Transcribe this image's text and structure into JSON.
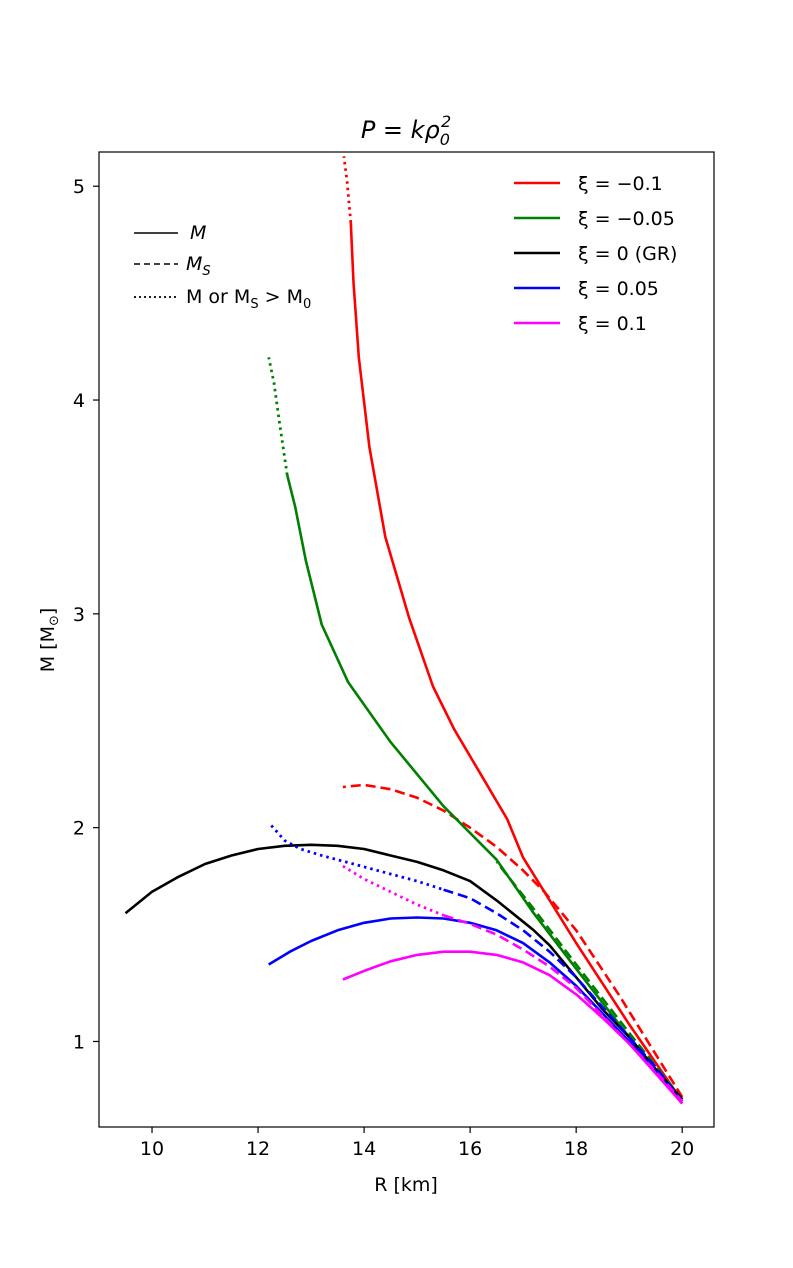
{
  "chart_data": {
    "type": "line",
    "title": {
      "main": "P = kρ",
      "sub": "0",
      "sup": "2"
    },
    "xlabel": "R [km]",
    "ylabel": "M [M",
    "ylabel_symbol": "⊙",
    "ylabel_close": "]",
    "xlim": [
      9.0,
      20.6
    ],
    "ylim": [
      0.6,
      5.16
    ],
    "xticks": [
      10,
      12,
      14,
      16,
      18,
      20
    ],
    "yticks": [
      1,
      2,
      3,
      4,
      5
    ],
    "grid": false,
    "legend_position": "top-right",
    "style_legend": {
      "position": "top-left",
      "entries": [
        {
          "style": "solid",
          "label": "M"
        },
        {
          "style": "dashed",
          "label": "M",
          "sub": "S"
        },
        {
          "style": "dotted",
          "label": "M or M",
          "sub": "S",
          "tail": " > M",
          "tail_sub": "0"
        }
      ]
    },
    "series": [
      {
        "name": "ξ = −0.1",
        "color": "#ff0000",
        "M_solid": [
          [
            20.0,
            0.72
          ],
          [
            19.0,
            1.08
          ],
          [
            18.0,
            1.46
          ],
          [
            17.0,
            1.86
          ],
          [
            16.7,
            2.04
          ],
          [
            16.2,
            2.25
          ],
          [
            15.7,
            2.46
          ],
          [
            15.3,
            2.66
          ],
          [
            14.85,
            2.98
          ],
          [
            14.4,
            3.36
          ],
          [
            14.1,
            3.78
          ],
          [
            13.9,
            4.2
          ],
          [
            13.8,
            4.55
          ],
          [
            13.75,
            4.83
          ]
        ],
        "M_dotted": [
          [
            13.75,
            4.83
          ],
          [
            13.68,
            5.02
          ],
          [
            13.62,
            5.14
          ]
        ],
        "MS_dashed": [
          [
            20.0,
            0.74
          ],
          [
            19.4,
            0.98
          ],
          [
            18.8,
            1.22
          ],
          [
            18.0,
            1.52
          ],
          [
            17.4,
            1.7
          ],
          [
            17.0,
            1.8
          ],
          [
            16.5,
            1.91
          ],
          [
            16.0,
            2.0
          ],
          [
            15.5,
            2.08
          ],
          [
            15.0,
            2.14
          ],
          [
            14.5,
            2.18
          ],
          [
            14.0,
            2.2
          ],
          [
            13.6,
            2.19
          ]
        ]
      },
      {
        "name": "ξ = −0.05",
        "color": "#008000",
        "M_solid": [
          [
            20.0,
            0.72
          ],
          [
            19.0,
            1.02
          ],
          [
            18.0,
            1.34
          ],
          [
            17.2,
            1.6
          ],
          [
            16.5,
            1.85
          ],
          [
            15.5,
            2.1
          ],
          [
            14.5,
            2.4
          ],
          [
            13.7,
            2.68
          ],
          [
            13.2,
            2.95
          ],
          [
            12.9,
            3.25
          ],
          [
            12.7,
            3.5
          ],
          [
            12.55,
            3.65
          ]
        ],
        "M_dotted": [
          [
            12.55,
            3.65
          ],
          [
            12.4,
            3.9
          ],
          [
            12.3,
            4.08
          ],
          [
            12.2,
            4.2
          ]
        ],
        "MS_dashed": [
          [
            20.0,
            0.73
          ],
          [
            19.0,
            1.04
          ],
          [
            18.0,
            1.36
          ],
          [
            17.2,
            1.62
          ],
          [
            16.5,
            1.84
          ]
        ]
      },
      {
        "name": "ξ = 0 (GR)",
        "color": "#000000",
        "M_solid": [
          [
            9.5,
            1.6
          ],
          [
            10.0,
            1.7
          ],
          [
            10.5,
            1.77
          ],
          [
            11.0,
            1.83
          ],
          [
            11.5,
            1.87
          ],
          [
            12.0,
            1.9
          ],
          [
            12.5,
            1.915
          ],
          [
            13.0,
            1.92
          ],
          [
            13.5,
            1.915
          ],
          [
            14.0,
            1.9
          ],
          [
            14.5,
            1.87
          ],
          [
            15.0,
            1.84
          ],
          [
            15.5,
            1.8
          ],
          [
            16.0,
            1.75
          ],
          [
            16.5,
            1.66
          ],
          [
            17.0,
            1.56
          ],
          [
            17.2,
            1.52
          ],
          [
            17.5,
            1.45
          ],
          [
            18.0,
            1.3
          ],
          [
            18.5,
            1.15
          ],
          [
            19.0,
            1.02
          ],
          [
            19.5,
            0.87
          ],
          [
            20.0,
            0.73
          ]
        ],
        "M_dotted": [],
        "MS_dashed": []
      },
      {
        "name": "ξ = 0.05",
        "color": "#0000ff",
        "M_solid": [
          [
            12.2,
            1.36
          ],
          [
            12.6,
            1.42
          ],
          [
            13.0,
            1.47
          ],
          [
            13.5,
            1.52
          ],
          [
            14.0,
            1.555
          ],
          [
            14.5,
            1.575
          ],
          [
            15.0,
            1.58
          ],
          [
            15.5,
            1.575
          ],
          [
            16.0,
            1.555
          ],
          [
            16.5,
            1.52
          ],
          [
            17.0,
            1.46
          ],
          [
            17.5,
            1.37
          ],
          [
            18.0,
            1.26
          ],
          [
            18.5,
            1.13
          ],
          [
            19.0,
            1.0
          ],
          [
            19.5,
            0.86
          ],
          [
            20.0,
            0.71
          ]
        ],
        "M_dotted": [
          [
            12.25,
            2.01
          ],
          [
            12.5,
            1.94
          ],
          [
            12.8,
            1.9
          ],
          [
            13.2,
            1.87
          ],
          [
            13.8,
            1.83
          ],
          [
            14.4,
            1.79
          ],
          [
            15.0,
            1.75
          ],
          [
            15.5,
            1.71
          ]
        ],
        "MS_dashed": [
          [
            15.5,
            1.71
          ],
          [
            16.0,
            1.67
          ],
          [
            16.5,
            1.6
          ],
          [
            17.0,
            1.52
          ],
          [
            17.5,
            1.42
          ],
          [
            18.0,
            1.3
          ],
          [
            18.5,
            1.16
          ],
          [
            19.0,
            1.02
          ],
          [
            19.5,
            0.88
          ],
          [
            20.0,
            0.72
          ]
        ]
      },
      {
        "name": "ξ = 0.1",
        "color": "#ff00ff",
        "M_solid": [
          [
            13.6,
            1.29
          ],
          [
            14.0,
            1.33
          ],
          [
            14.5,
            1.375
          ],
          [
            15.0,
            1.405
          ],
          [
            15.5,
            1.42
          ],
          [
            16.0,
            1.42
          ],
          [
            16.5,
            1.405
          ],
          [
            17.0,
            1.37
          ],
          [
            17.5,
            1.31
          ],
          [
            18.0,
            1.22
          ],
          [
            18.5,
            1.11
          ],
          [
            19.0,
            0.99
          ],
          [
            19.5,
            0.85
          ],
          [
            20.0,
            0.71
          ]
        ],
        "M_dotted": [
          [
            13.6,
            1.82
          ],
          [
            14.0,
            1.76
          ],
          [
            14.5,
            1.7
          ],
          [
            15.0,
            1.64
          ],
          [
            15.5,
            1.59
          ]
        ],
        "MS_dashed": [
          [
            15.5,
            1.59
          ],
          [
            16.0,
            1.55
          ],
          [
            16.5,
            1.5
          ],
          [
            17.0,
            1.43
          ],
          [
            17.5,
            1.35
          ],
          [
            18.0,
            1.25
          ],
          [
            18.5,
            1.12
          ],
          [
            19.0,
            0.99
          ],
          [
            19.5,
            0.86
          ],
          [
            20.0,
            0.72
          ]
        ]
      }
    ]
  }
}
